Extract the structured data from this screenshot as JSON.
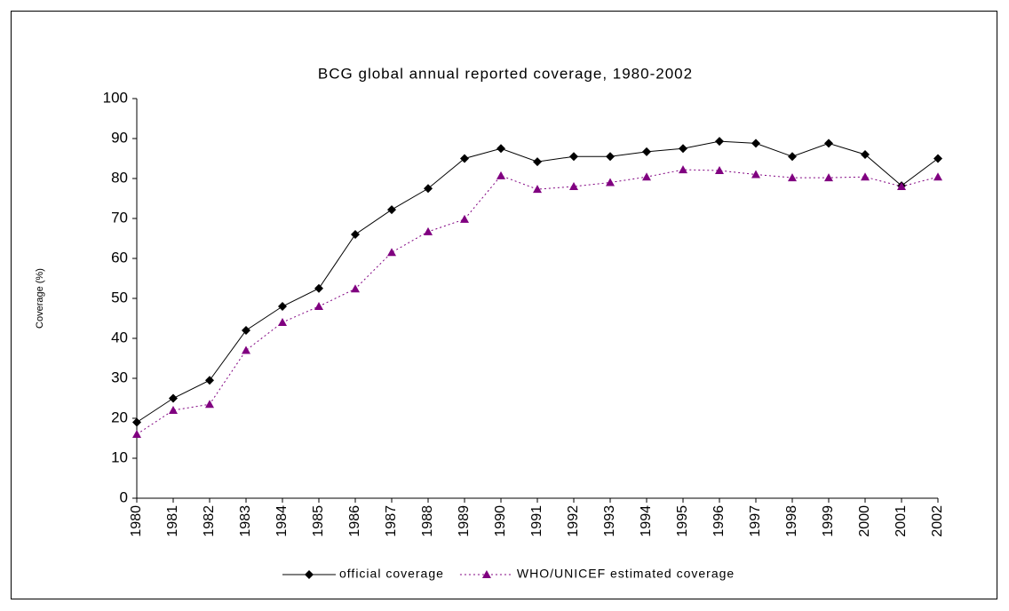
{
  "chart_data": {
    "type": "line",
    "title": "BCG global annual reported coverage, 1980-2002",
    "y_label": "Coverage (%)",
    "categories": [
      "1980",
      "1981",
      "1982",
      "1983",
      "1984",
      "1985",
      "1986",
      "1987",
      "1988",
      "1989",
      "1990",
      "1991",
      "1992",
      "1993",
      "1994",
      "1995",
      "1996",
      "1997",
      "1998",
      "1999",
      "2000",
      "2001",
      "2002"
    ],
    "series": [
      {
        "name": "official coverage",
        "color": "#000000",
        "marker": "diamond",
        "dash": "solid",
        "values": [
          19,
          25,
          29.5,
          42,
          48,
          52.5,
          66,
          72.2,
          77.5,
          85,
          87.5,
          84.2,
          85.5,
          85.5,
          86.7,
          87.5,
          89.3,
          88.8,
          85.5,
          88.8,
          86,
          78.2,
          85
        ]
      },
      {
        "name": "WHO/UNICEF estimated coverage",
        "color": "#800080",
        "marker": "triangle",
        "dash": "dotted",
        "values": [
          16,
          22,
          23.5,
          37,
          44,
          48,
          52.4,
          61.5,
          66.7,
          69.8,
          80.7,
          77.3,
          78,
          79,
          80.4,
          82.2,
          82,
          81,
          80.2,
          80.2,
          80.4,
          78,
          80.4
        ]
      }
    ],
    "ylim": [
      0,
      100
    ],
    "yticks": [
      0,
      10,
      20,
      30,
      40,
      50,
      60,
      70,
      80,
      90,
      100
    ],
    "grid": false,
    "legend": "bottom"
  }
}
